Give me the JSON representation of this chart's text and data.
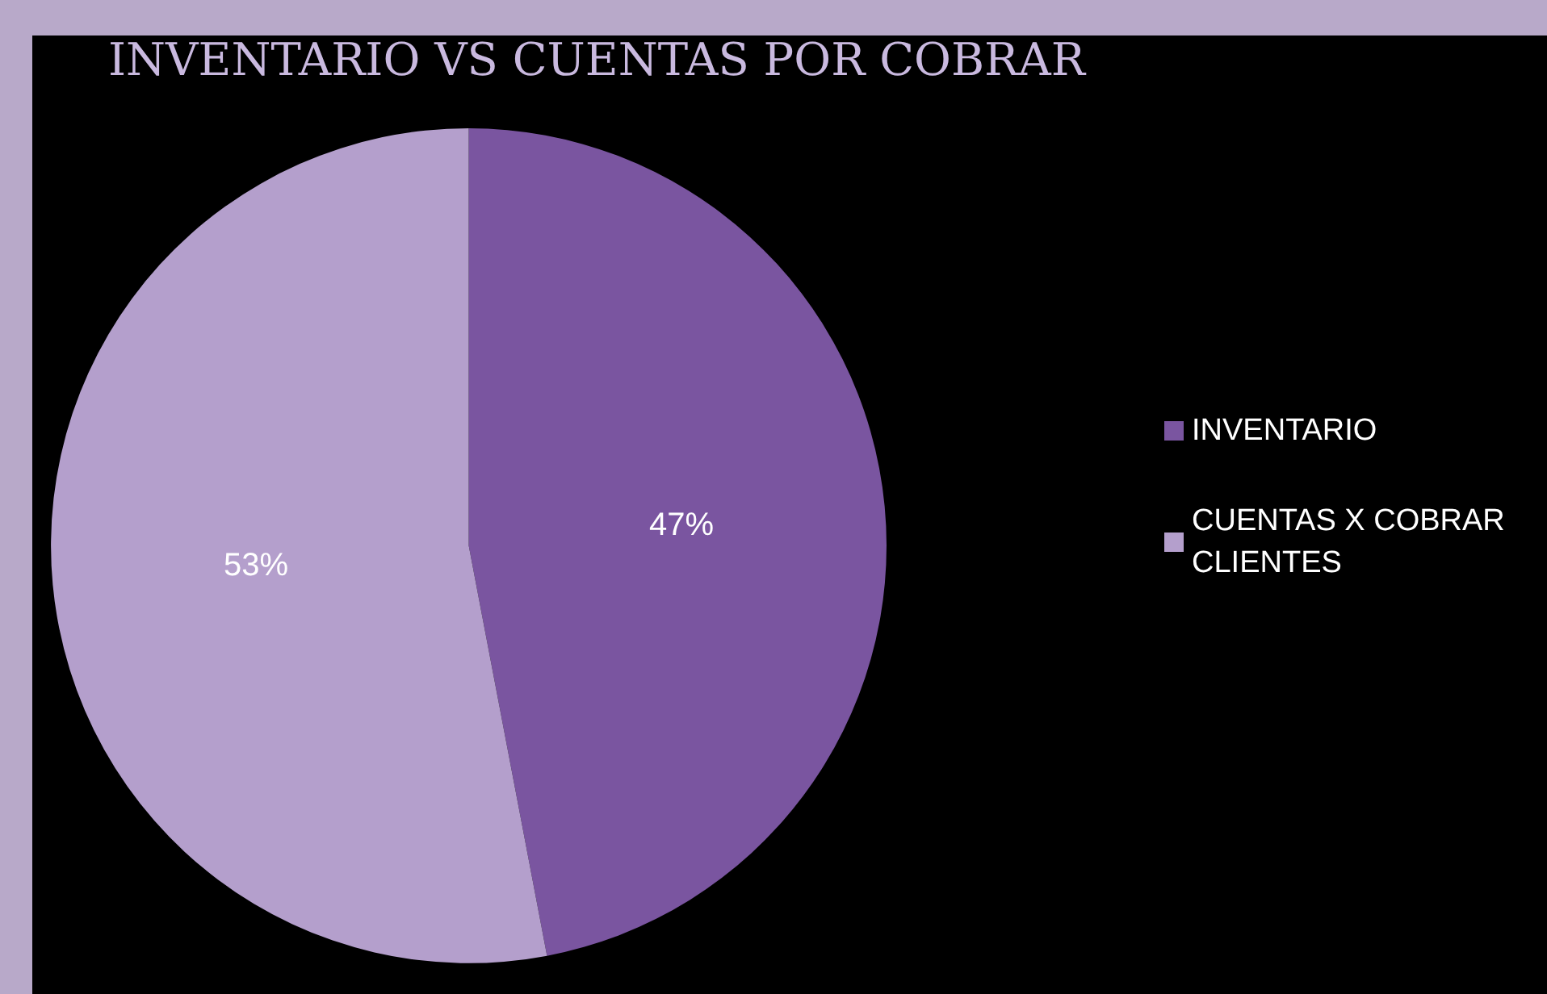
{
  "chart_data": {
    "type": "pie",
    "title": "INVENTARIO VS CUENTAS POR COBRAR",
    "categories": [
      "INVENTARIO",
      "CUENTAS X COBRAR CLIENTES"
    ],
    "values": [
      47,
      53
    ],
    "colors": [
      "#7a55a0",
      "#b49fcc"
    ],
    "value_labels": [
      "47%",
      "53%"
    ],
    "legend": "right"
  }
}
